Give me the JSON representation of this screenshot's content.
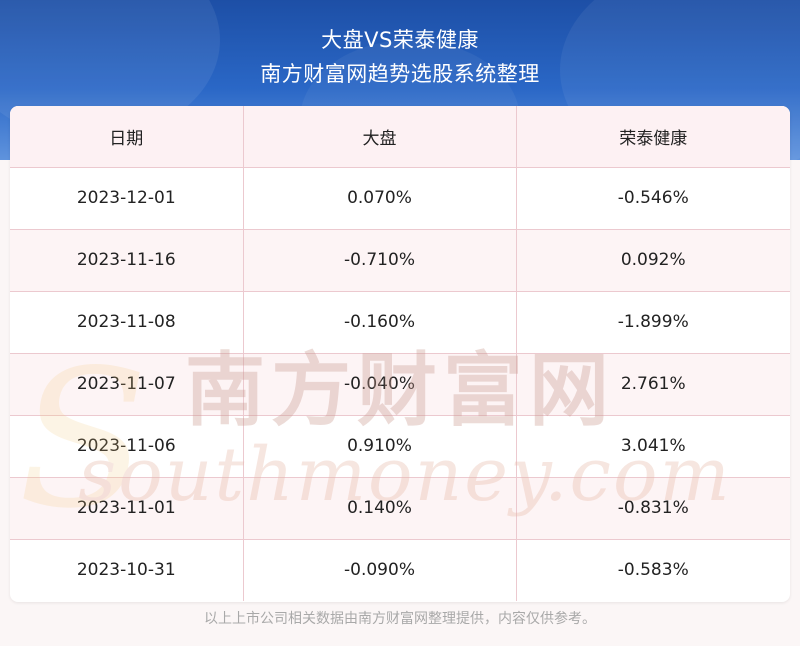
{
  "header": {
    "title_line1": "大盘VS荣泰健康",
    "title_line2": "南方财富网趋势选股系统整理"
  },
  "table": {
    "columns": [
      "日期",
      "大盘",
      "荣泰健康"
    ],
    "rows": [
      [
        "2023-12-01",
        "0.070%",
        "-0.546%"
      ],
      [
        "2023-11-16",
        "-0.710%",
        "0.092%"
      ],
      [
        "2023-11-08",
        "-0.160%",
        "-1.899%"
      ],
      [
        "2023-11-07",
        "-0.040%",
        "2.761%"
      ],
      [
        "2023-11-06",
        "0.910%",
        "3.041%"
      ],
      [
        "2023-11-01",
        "0.140%",
        "-0.831%"
      ],
      [
        "2023-10-31",
        "-0.090%",
        "-0.583%"
      ]
    ]
  },
  "watermark": {
    "cn": "南方财富网",
    "en": "southmoney.com"
  },
  "footer": {
    "note": "以上上市公司相关数据由南方财富网整理提供，内容仅供参考。"
  },
  "colors": {
    "banner": "#2a67c6",
    "grid": "#ecc9cf",
    "header_row": "#fdf1f3",
    "watermark": "#e9c9c1"
  }
}
